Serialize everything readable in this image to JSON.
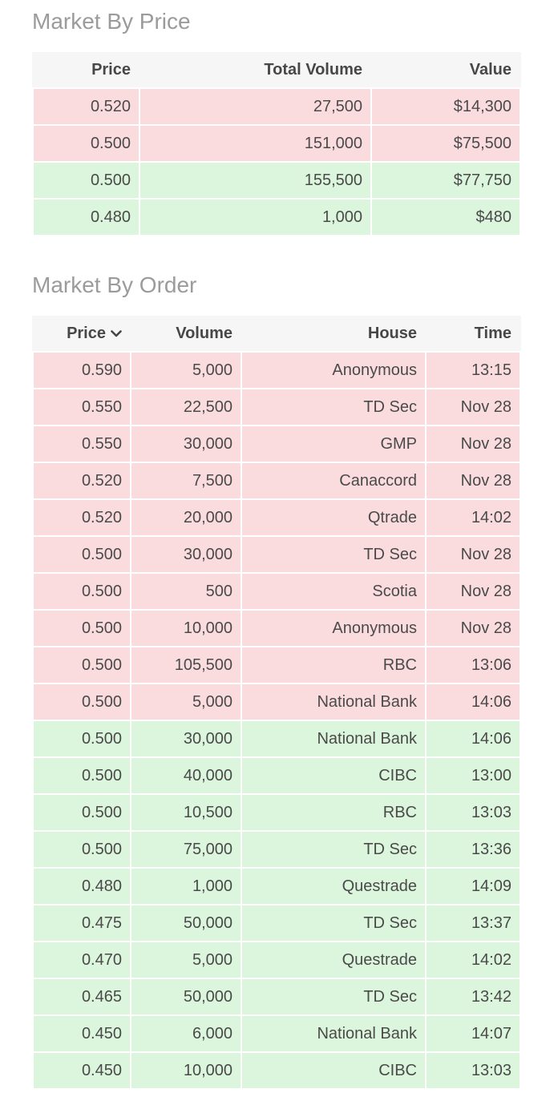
{
  "colors": {
    "sell_row_bg": "#fadcdf",
    "buy_row_bg": "#dcf5dd",
    "header_bg": "#f6f6f6",
    "cell_text": "#4a4a4a",
    "header_text": "#474747",
    "title_text": "#9b9b9b"
  },
  "market_by_price": {
    "title": "Market By Price",
    "columns": {
      "price": "Price",
      "total_volume": "Total Volume",
      "value": "Value"
    },
    "rows": [
      {
        "price": "0.520",
        "total_volume": "27,500",
        "value": "$14,300",
        "side": "sell"
      },
      {
        "price": "0.500",
        "total_volume": "151,000",
        "value": "$75,500",
        "side": "sell"
      },
      {
        "price": "0.500",
        "total_volume": "155,500",
        "value": "$77,750",
        "side": "buy"
      },
      {
        "price": "0.480",
        "total_volume": "1,000",
        "value": "$480",
        "side": "buy"
      }
    ]
  },
  "market_by_order": {
    "title": "Market By Order",
    "columns": {
      "price": "Price",
      "volume": "Volume",
      "house": "House",
      "time": "Time"
    },
    "price_sort_icon": "chevron-down",
    "rows": [
      {
        "price": "0.590",
        "volume": "5,000",
        "house": "Anonymous",
        "time": "13:15",
        "side": "sell"
      },
      {
        "price": "0.550",
        "volume": "22,500",
        "house": "TD Sec",
        "time": "Nov 28",
        "side": "sell"
      },
      {
        "price": "0.550",
        "volume": "30,000",
        "house": "GMP",
        "time": "Nov 28",
        "side": "sell"
      },
      {
        "price": "0.520",
        "volume": "7,500",
        "house": "Canaccord",
        "time": "Nov 28",
        "side": "sell"
      },
      {
        "price": "0.520",
        "volume": "20,000",
        "house": "Qtrade",
        "time": "14:02",
        "side": "sell"
      },
      {
        "price": "0.500",
        "volume": "30,000",
        "house": "TD Sec",
        "time": "Nov 28",
        "side": "sell"
      },
      {
        "price": "0.500",
        "volume": "500",
        "house": "Scotia",
        "time": "Nov 28",
        "side": "sell"
      },
      {
        "price": "0.500",
        "volume": "10,000",
        "house": "Anonymous",
        "time": "Nov 28",
        "side": "sell"
      },
      {
        "price": "0.500",
        "volume": "105,500",
        "house": "RBC",
        "time": "13:06",
        "side": "sell"
      },
      {
        "price": "0.500",
        "volume": "5,000",
        "house": "National Bank",
        "time": "14:06",
        "side": "sell"
      },
      {
        "price": "0.500",
        "volume": "30,000",
        "house": "National Bank",
        "time": "14:06",
        "side": "buy"
      },
      {
        "price": "0.500",
        "volume": "40,000",
        "house": "CIBC",
        "time": "13:00",
        "side": "buy"
      },
      {
        "price": "0.500",
        "volume": "10,500",
        "house": "RBC",
        "time": "13:03",
        "side": "buy"
      },
      {
        "price": "0.500",
        "volume": "75,000",
        "house": "TD Sec",
        "time": "13:36",
        "side": "buy"
      },
      {
        "price": "0.480",
        "volume": "1,000",
        "house": "Questrade",
        "time": "14:09",
        "side": "buy"
      },
      {
        "price": "0.475",
        "volume": "50,000",
        "house": "TD Sec",
        "time": "13:37",
        "side": "buy"
      },
      {
        "price": "0.470",
        "volume": "5,000",
        "house": "Questrade",
        "time": "14:02",
        "side": "buy"
      },
      {
        "price": "0.465",
        "volume": "50,000",
        "house": "TD Sec",
        "time": "13:42",
        "side": "buy"
      },
      {
        "price": "0.450",
        "volume": "6,000",
        "house": "National Bank",
        "time": "14:07",
        "side": "buy"
      },
      {
        "price": "0.450",
        "volume": "10,000",
        "house": "CIBC",
        "time": "13:03",
        "side": "buy"
      }
    ]
  }
}
